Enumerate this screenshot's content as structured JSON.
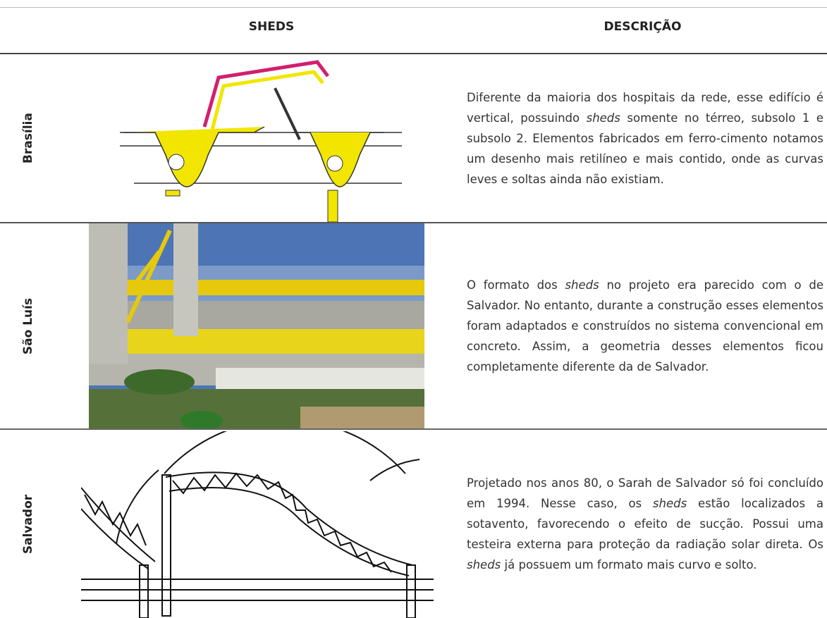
{
  "table": {
    "header": [
      "SHEDS",
      "DESCRIÇÃO"
    ],
    "rows": [
      {
        "label": "Brasília",
        "description": [
          {
            "text": "Diferente da maioria dos hospitais da rede, esse edifício é vertical, possuindo ",
            "italic": false
          },
          {
            "text": "sheds",
            "italic": true
          },
          {
            "text": " somente no térreo, subsolo 1 e subsolo 2. Elementos fabricados em ferro-cimento notamos um desenho mais retilíneo e mais contido, onde as curvas leves e soltas ainda não existiam.",
            "italic": false
          }
        ]
      },
      {
        "label": "São Luís",
        "description": [
          {
            "text": "O formato dos ",
            "italic": false
          },
          {
            "text": "sheds",
            "italic": true
          },
          {
            "text": " no projeto era parecido com o de Salvador. No entanto, durante a construção esses elementos foram adaptados e construídos no sistema convencional em concreto. Assim, a geometria desses elementos ficou completamente diferente da de Salvador.",
            "italic": false
          }
        ]
      },
      {
        "label": "Salvador",
        "description": [
          {
            "text": "Projetado nos anos 80, o Sarah de Salvador só foi concluído em 1994. Nesse caso, os ",
            "italic": false
          },
          {
            "text": "sheds",
            "italic": true
          },
          {
            "text": " estão localizados a sotavento, favorecendo o efeito de sucção. Possui uma testeira externa para proteção da radiação solar direta. Os ",
            "italic": false
          },
          {
            "text": "sheds",
            "italic": true
          },
          {
            "text": " já possuem um formato mais curvo e solto.",
            "italic": false
          }
        ]
      }
    ]
  }
}
